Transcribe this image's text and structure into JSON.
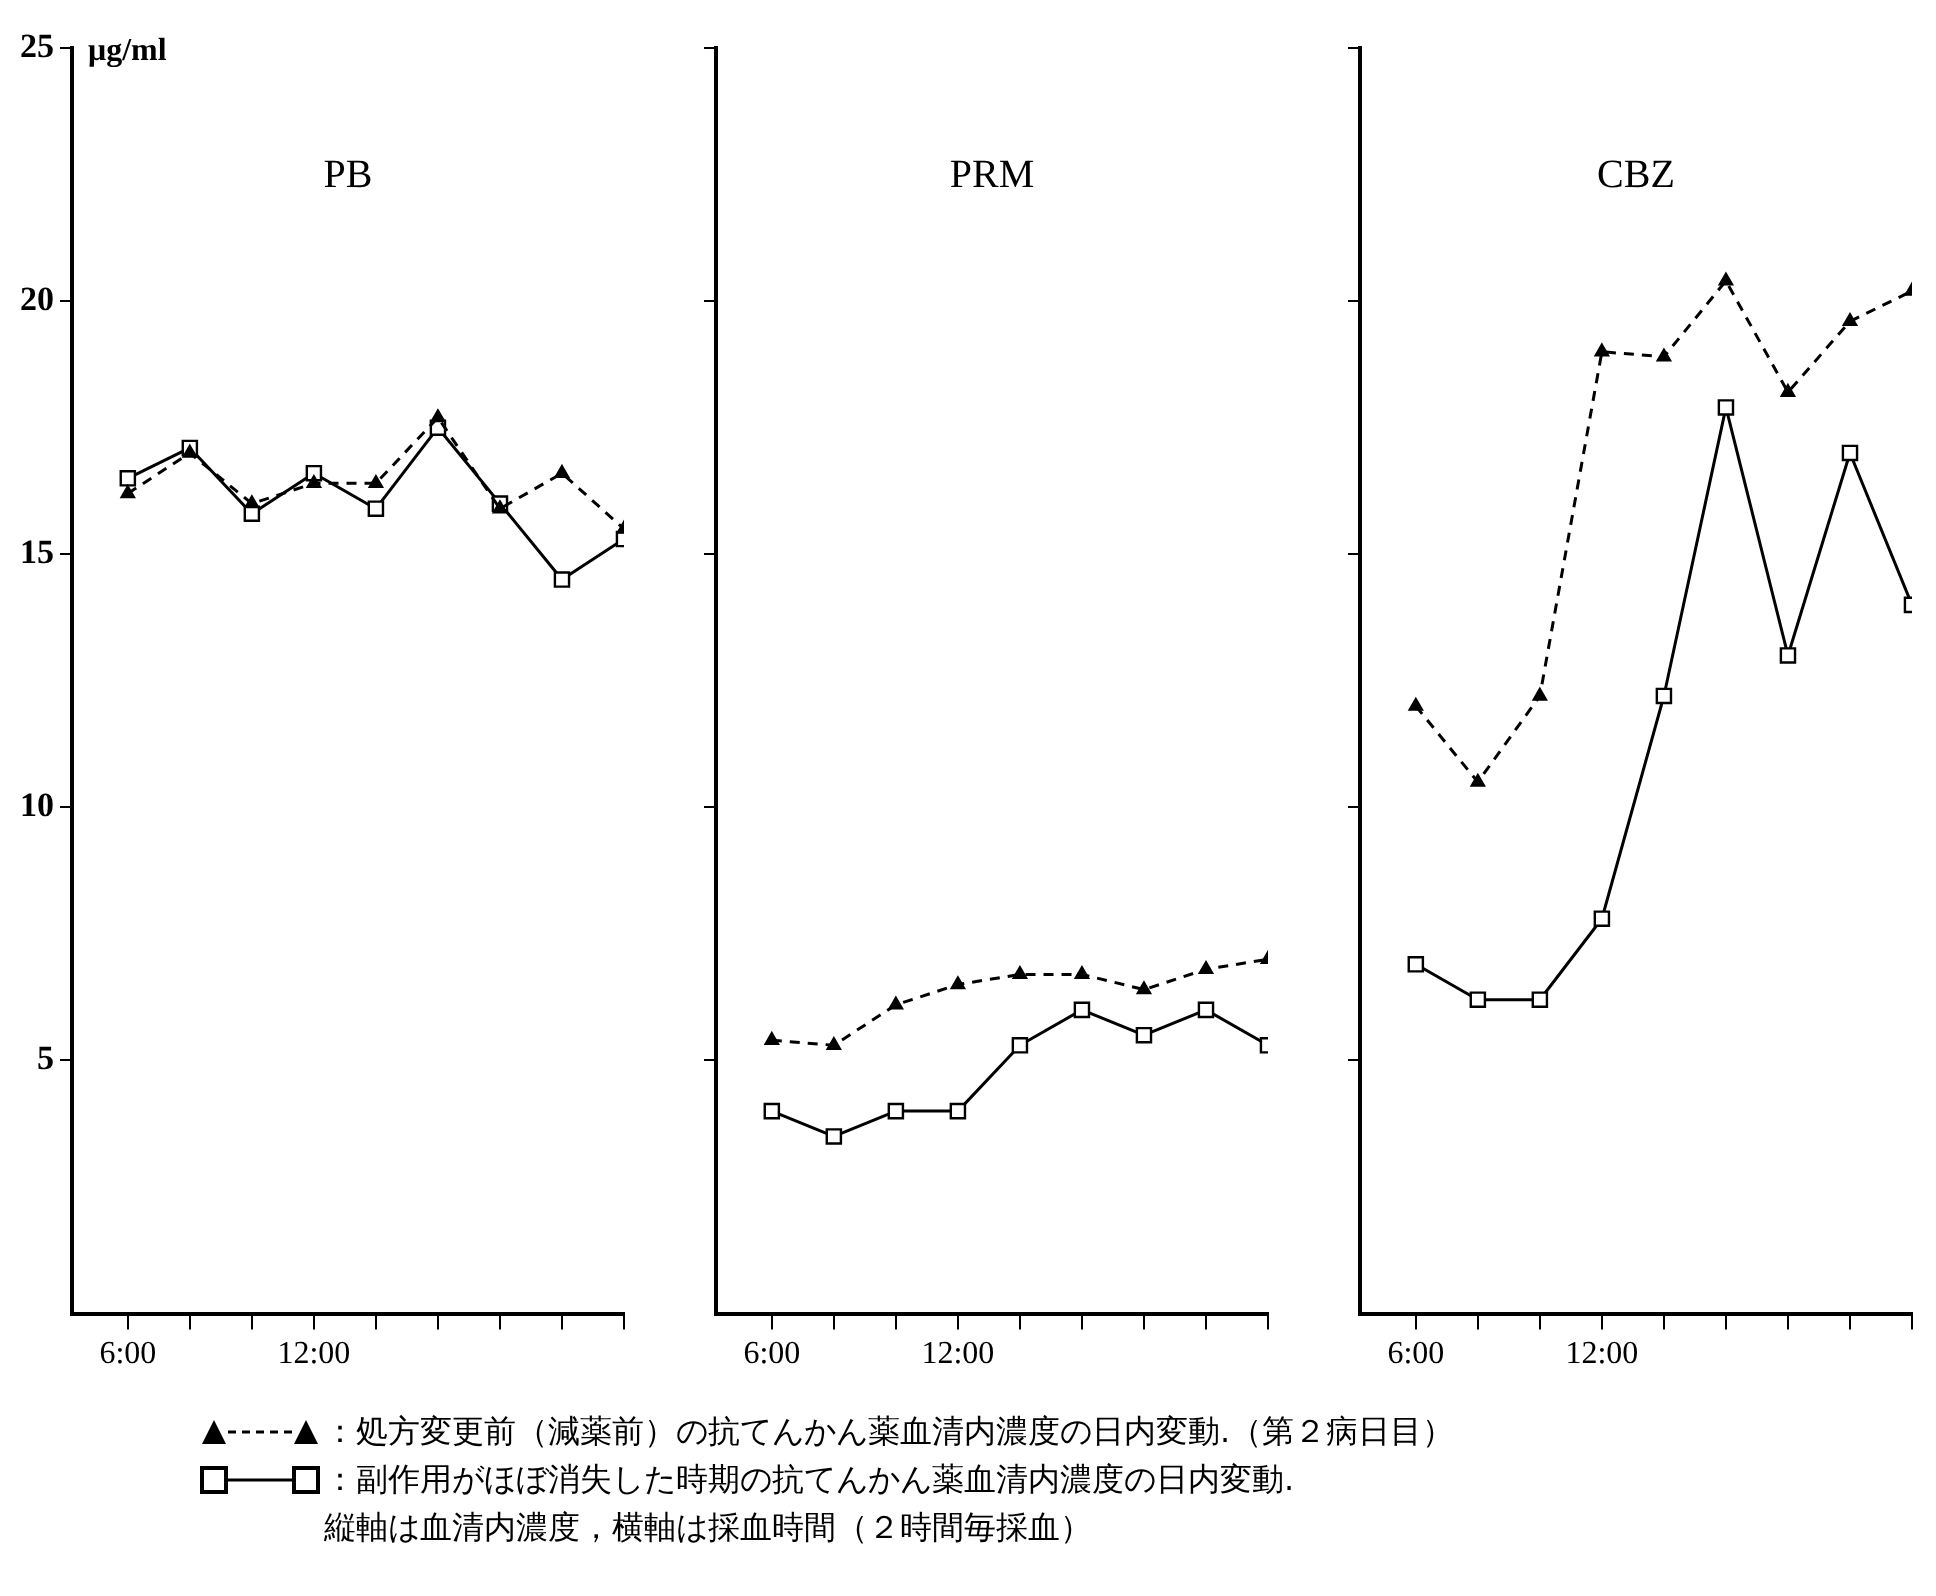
{
  "chart_data": [
    {
      "type": "line",
      "title": "PB",
      "ylabel": "μg/ml",
      "x": [
        6,
        8,
        10,
        12,
        14,
        16,
        18,
        20,
        22
      ],
      "xlim": [
        4.2,
        22
      ],
      "xticks": [
        {
          "value": 6,
          "label": "6:00"
        },
        {
          "value": 8,
          "label": null
        },
        {
          "value": 10,
          "label": null
        },
        {
          "value": 12,
          "label": "12:00"
        },
        {
          "value": 14,
          "label": null
        },
        {
          "value": 16,
          "label": null
        },
        {
          "value": 18,
          "label": null
        },
        {
          "value": 20,
          "label": null
        },
        {
          "value": 22,
          "label": null
        }
      ],
      "ylim": [
        0,
        25
      ],
      "yticks": [
        5,
        10,
        15,
        20,
        25
      ],
      "grid": false,
      "legend": "bottom",
      "series": [
        {
          "name": "：処方変更前（減薬前）の抗てんかん薬血清内濃度の日内変動.（第２病日目）",
          "color": "#000000",
          "marker": "triangle",
          "line_style": "dashed",
          "values": [
            16.2,
            17.0,
            16.0,
            16.4,
            16.4,
            17.7,
            15.9,
            16.6,
            15.5
          ]
        },
        {
          "name": "：副作用がほぼ消失した時期の抗てんかん薬血清内濃度の日内変動.",
          "color": "#000000",
          "marker": "square",
          "line_style": "solid",
          "values": [
            16.5,
            17.1,
            15.8,
            16.6,
            15.9,
            17.5,
            16.0,
            14.5,
            15.3
          ]
        }
      ],
      "annotations": [
        "縦軸は血清内濃度，横軸は採血時間（２時間毎採血）"
      ]
    },
    {
      "type": "line",
      "title": "PRM",
      "x": [
        6,
        8,
        10,
        12,
        14,
        16,
        18,
        20,
        22
      ],
      "xlim": [
        4.2,
        22
      ],
      "xticks": [
        {
          "value": 6,
          "label": "6:00"
        },
        {
          "value": 8,
          "label": null
        },
        {
          "value": 10,
          "label": null
        },
        {
          "value": 12,
          "label": "12:00"
        },
        {
          "value": 14,
          "label": null
        },
        {
          "value": 16,
          "label": null
        },
        {
          "value": 18,
          "label": null
        },
        {
          "value": 20,
          "label": null
        },
        {
          "value": 22,
          "label": null
        }
      ],
      "ylim": [
        0,
        25
      ],
      "yticks": [
        5,
        10,
        15,
        20,
        25
      ],
      "grid": false,
      "tick_labels": "x",
      "series": [
        {
          "color": "#000000",
          "marker": "triangle",
          "line_style": "dashed",
          "values": [
            5.4,
            5.3,
            6.1,
            6.5,
            6.7,
            6.7,
            6.4,
            6.8,
            7.0
          ]
        },
        {
          "color": "#000000",
          "marker": "square",
          "line_style": "solid",
          "values": [
            4.0,
            3.5,
            4.0,
            4.0,
            5.3,
            6.0,
            5.5,
            6.0,
            5.3
          ]
        }
      ]
    },
    {
      "type": "line",
      "title": "CBZ",
      "x": [
        6,
        8,
        10,
        12,
        14,
        16,
        18,
        20,
        22
      ],
      "xlim": [
        4.2,
        22
      ],
      "xticks": [
        {
          "value": 6,
          "label": "6:00"
        },
        {
          "value": 8,
          "label": null
        },
        {
          "value": 10,
          "label": null
        },
        {
          "value": 12,
          "label": "12:00"
        },
        {
          "value": 14,
          "label": null
        },
        {
          "value": 16,
          "label": null
        },
        {
          "value": 18,
          "label": null
        },
        {
          "value": 20,
          "label": null
        },
        {
          "value": 22,
          "label": null
        }
      ],
      "ylim": [
        0,
        25
      ],
      "yticks": [
        5,
        10,
        15,
        20,
        25
      ],
      "grid": false,
      "tick_labels": "x",
      "series": [
        {
          "color": "#000000",
          "marker": "triangle",
          "line_style": "dashed",
          "values": [
            12.0,
            10.5,
            12.2,
            19.0,
            18.9,
            20.4,
            18.2,
            19.6,
            20.2
          ]
        },
        {
          "color": "#000000",
          "marker": "square",
          "line_style": "solid",
          "values": [
            6.9,
            6.2,
            6.2,
            7.8,
            12.2,
            17.9,
            13.0,
            17.0,
            14.0
          ]
        }
      ]
    }
  ]
}
